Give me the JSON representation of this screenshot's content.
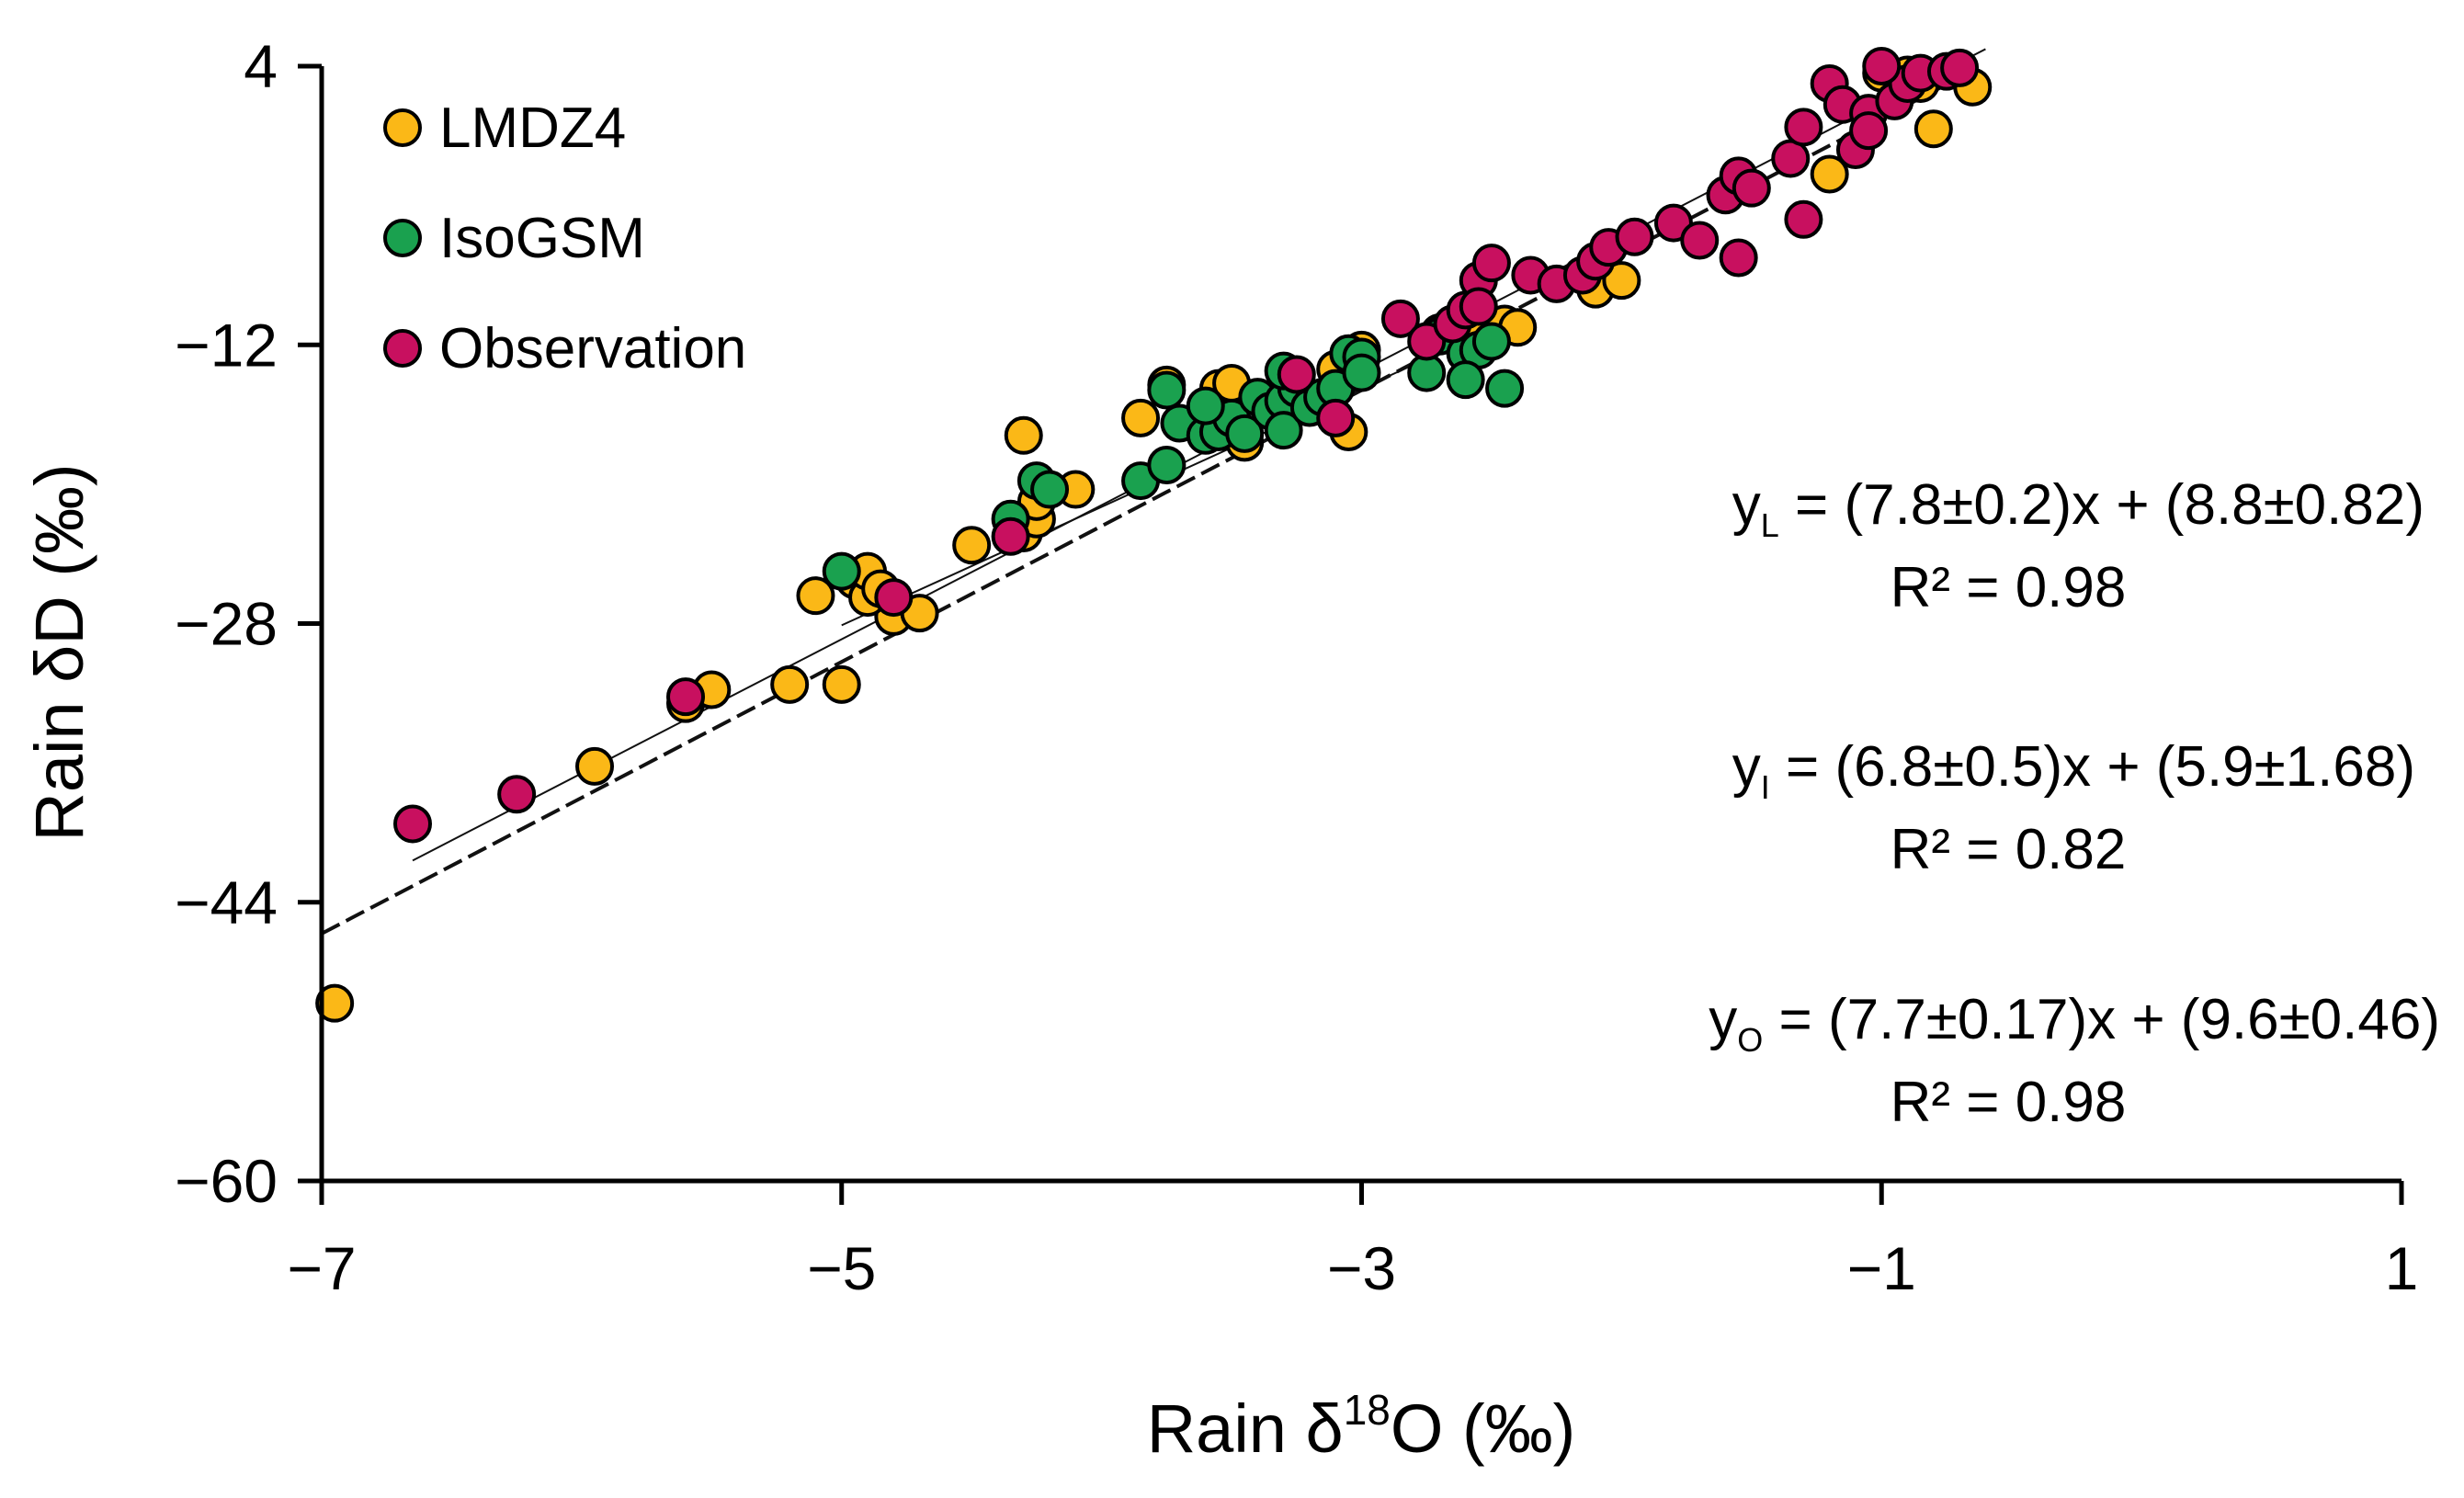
{
  "chart_data": {
    "type": "scatter",
    "title": "",
    "xlabel_main": "Rain δ",
    "xlabel_sup": "18",
    "xlabel_tail": "O (‰)",
    "ylabel": "Rain δD  (‰)",
    "xlim": [
      -7,
      1
    ],
    "ylim": [
      -60,
      4
    ],
    "xticks": [
      -7,
      -5,
      -3,
      -1,
      1
    ],
    "yticks": [
      4,
      -12,
      -28,
      -44,
      -60
    ],
    "xtick_labels": [
      "−7",
      "−5",
      "−3",
      "−1",
      "1"
    ],
    "ytick_labels": [
      "4",
      "−12",
      "−28",
      "−44",
      "−60"
    ],
    "grid": false,
    "legend_position": "top-left",
    "series": [
      {
        "name": "LMDZ4",
        "color": "#FBB817",
        "points": [
          [
            -6.95,
            -49.8
          ],
          [
            -5.95,
            -36.2
          ],
          [
            -5.6,
            -32.6
          ],
          [
            -5.5,
            -31.8
          ],
          [
            -5.2,
            -31.5
          ],
          [
            -5.0,
            -31.5
          ],
          [
            -5.1,
            -26.4
          ],
          [
            -4.95,
            -25.5
          ],
          [
            -4.8,
            -27.6
          ],
          [
            -4.9,
            -26.5
          ],
          [
            -4.9,
            -25.0
          ],
          [
            -4.85,
            -26.0
          ],
          [
            -4.7,
            -27.4
          ],
          [
            -4.5,
            -23.5
          ],
          [
            -4.3,
            -22.8
          ],
          [
            -4.25,
            -22.0
          ],
          [
            -4.25,
            -21.0
          ],
          [
            -4.3,
            -17.2
          ],
          [
            -4.1,
            -20.3
          ],
          [
            -3.85,
            -16.2
          ],
          [
            -3.75,
            -14.3
          ],
          [
            -3.55,
            -14.5
          ],
          [
            -3.5,
            -14.2
          ],
          [
            -3.45,
            -17.6
          ],
          [
            -3.3,
            -15.5
          ],
          [
            -3.2,
            -15.5
          ],
          [
            -3.1,
            -13.4
          ],
          [
            -3.05,
            -17.0
          ],
          [
            -3.0,
            -12.3
          ],
          [
            -2.7,
            -11.3
          ],
          [
            -2.6,
            -10.5
          ],
          [
            -2.55,
            -11.5
          ],
          [
            -2.45,
            -10.8
          ],
          [
            -2.4,
            -11.0
          ],
          [
            -2.1,
            -8.8
          ],
          [
            -2.0,
            -8.3
          ],
          [
            -1.55,
            -2.8
          ],
          [
            -1.2,
            -2.2
          ],
          [
            -0.85,
            3.0
          ],
          [
            -0.8,
            0.4
          ],
          [
            -0.65,
            2.8
          ],
          [
            -1.0,
            3.6
          ],
          [
            -0.9,
            3.5
          ]
        ]
      },
      {
        "name": "IsoGSM",
        "color": "#1AA14F",
        "points": [
          [
            -5.0,
            -25.0
          ],
          [
            -4.35,
            -22.0
          ],
          [
            -4.25,
            -19.8
          ],
          [
            -4.2,
            -20.3
          ],
          [
            -3.85,
            -19.8
          ],
          [
            -3.75,
            -18.9
          ],
          [
            -3.7,
            -16.5
          ],
          [
            -3.6,
            -17.2
          ],
          [
            -3.55,
            -17.0
          ],
          [
            -3.5,
            -16.2
          ],
          [
            -3.45,
            -17.1
          ],
          [
            -3.4,
            -15.0
          ],
          [
            -3.35,
            -15.8
          ],
          [
            -3.3,
            -15.2
          ],
          [
            -3.3,
            -16.9
          ],
          [
            -3.25,
            -14.5
          ],
          [
            -3.2,
            -15.6
          ],
          [
            -3.15,
            -15.0
          ],
          [
            -3.1,
            -14.5
          ],
          [
            -3.05,
            -12.5
          ],
          [
            -3.0,
            -12.7
          ],
          [
            -3.0,
            -13.6
          ],
          [
            -2.75,
            -13.6
          ],
          [
            -2.7,
            -11.5
          ],
          [
            -2.6,
            -12.5
          ],
          [
            -2.55,
            -12.3
          ],
          [
            -2.5,
            -11.8
          ],
          [
            -2.45,
            -14.5
          ],
          [
            -3.75,
            -14.6
          ],
          [
            -3.6,
            -15.5
          ],
          [
            -2.6,
            -14.0
          ],
          [
            -3.3,
            -13.5
          ]
        ]
      },
      {
        "name": "Observation",
        "color": "#C8105F",
        "points": [
          [
            -6.65,
            -39.5
          ],
          [
            -6.25,
            -37.8
          ],
          [
            -5.6,
            -32.2
          ],
          [
            -4.8,
            -26.5
          ],
          [
            -4.35,
            -23.0
          ],
          [
            -3.25,
            -13.7
          ],
          [
            -3.1,
            -16.2
          ],
          [
            -2.85,
            -10.5
          ],
          [
            -2.75,
            -11.8
          ],
          [
            -2.65,
            -10.8
          ],
          [
            -2.6,
            -10.0
          ],
          [
            -2.55,
            -8.3
          ],
          [
            -2.55,
            -9.8
          ],
          [
            -2.5,
            -7.3
          ],
          [
            -2.35,
            -8.0
          ],
          [
            -2.25,
            -8.5
          ],
          [
            -2.15,
            -8.0
          ],
          [
            -2.1,
            -7.2
          ],
          [
            -2.05,
            -6.4
          ],
          [
            -1.95,
            -5.8
          ],
          [
            -1.8,
            -5.0
          ],
          [
            -1.7,
            -6.0
          ],
          [
            -1.6,
            -3.4
          ],
          [
            -1.55,
            -2.3
          ],
          [
            -1.55,
            -7.0
          ],
          [
            -1.5,
            -3.0
          ],
          [
            -1.35,
            -1.3
          ],
          [
            -1.3,
            -4.8
          ],
          [
            -1.2,
            3.0
          ],
          [
            -1.15,
            1.8
          ],
          [
            -1.1,
            -0.8
          ],
          [
            -1.05,
            1.3
          ],
          [
            -0.95,
            2.0
          ],
          [
            -0.9,
            3.0
          ],
          [
            -0.85,
            3.6
          ],
          [
            -0.75,
            3.7
          ],
          [
            -0.7,
            3.9
          ],
          [
            -1.0,
            4.0
          ],
          [
            -1.05,
            0.3
          ],
          [
            -1.3,
            0.5
          ]
        ]
      }
    ],
    "fit_lines": [
      {
        "name": "LMDZ4 fit",
        "slope": 7.8,
        "intercept": 8.8,
        "x_range": [
          -7,
          -0.65
        ],
        "style": "dashed"
      },
      {
        "name": "IsoGSM fit",
        "slope": 6.8,
        "intercept": 5.9,
        "x_range": [
          -5.0,
          -2.45
        ],
        "style": "solid"
      },
      {
        "name": "Observation fit",
        "slope": 7.7,
        "intercept": 9.6,
        "x_range": [
          -6.65,
          -0.6
        ],
        "style": "solid"
      }
    ],
    "annotations": [
      {
        "sub": "L",
        "equation": " = (7.8±0.2)x + (8.8±0.82)",
        "r2": "R² = 0.98"
      },
      {
        "sub": "I",
        "equation": " = (6.8±0.5)x + (5.9±1.68)",
        "r2": "R² = 0.82"
      },
      {
        "sub": "O",
        "equation": " = (7.7±0.17)x + (9.6±0.46)",
        "r2": "R² = 0.98"
      }
    ]
  }
}
